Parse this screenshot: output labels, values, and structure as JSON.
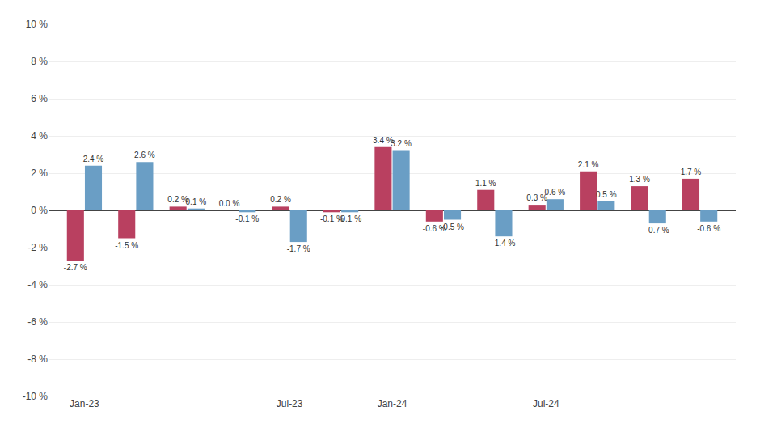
{
  "chart_data": {
    "type": "bar",
    "categories": [
      "Jan-23",
      null,
      null,
      null,
      "Jul-23",
      null,
      "Jan-24",
      null,
      null,
      "Jul-24",
      null,
      null,
      null
    ],
    "series": [
      {
        "color": "#b94060",
        "values": [
          -2.7,
          -1.5,
          0.2,
          0.0,
          0.2,
          -0.1,
          3.4,
          -0.6,
          1.1,
          0.3,
          2.1,
          1.3,
          1.7
        ],
        "value_labels": [
          "-2.7 %",
          "-1.5 %",
          "0.2 %",
          "0.0 %",
          "0.2 %",
          "-0.1 %",
          "3.4 %",
          "-0.6 %",
          "1.1 %",
          "0.3 %",
          "2.1 %",
          "1.3 %",
          "1.7 %"
        ]
      },
      {
        "color": "#6a9ec5",
        "values": [
          2.4,
          2.6,
          0.1,
          -0.1,
          -1.7,
          -0.1,
          3.2,
          -0.5,
          -1.4,
          0.6,
          0.5,
          -0.7,
          -0.6
        ],
        "value_labels": [
          "2.4 %",
          "2.6 %",
          "0.1 %",
          "-0.1 %",
          "-1.7 %",
          "-0.1 %",
          "3.2 %",
          "-0.5 %",
          "-1.4 %",
          "0.6 %",
          "0.5 %",
          "-0.7 %",
          "-0.6 %"
        ]
      }
    ],
    "ylim": [
      -10,
      10
    ],
    "yticks": [
      {
        "value": -10,
        "label": "-10 %"
      },
      {
        "value": -8,
        "label": "-8 %"
      },
      {
        "value": -6,
        "label": "-6 %"
      },
      {
        "value": -4,
        "label": "-4 %"
      },
      {
        "value": -2,
        "label": "-2 %"
      },
      {
        "value": 0,
        "label": "0 %"
      },
      {
        "value": 2,
        "label": "2 %"
      },
      {
        "value": 4,
        "label": "4 %"
      },
      {
        "value": 6,
        "label": "6 %"
      },
      {
        "value": 8,
        "label": "8 %"
      },
      {
        "value": 10,
        "label": "10 %"
      }
    ],
    "grid": true,
    "data_labels": true
  }
}
